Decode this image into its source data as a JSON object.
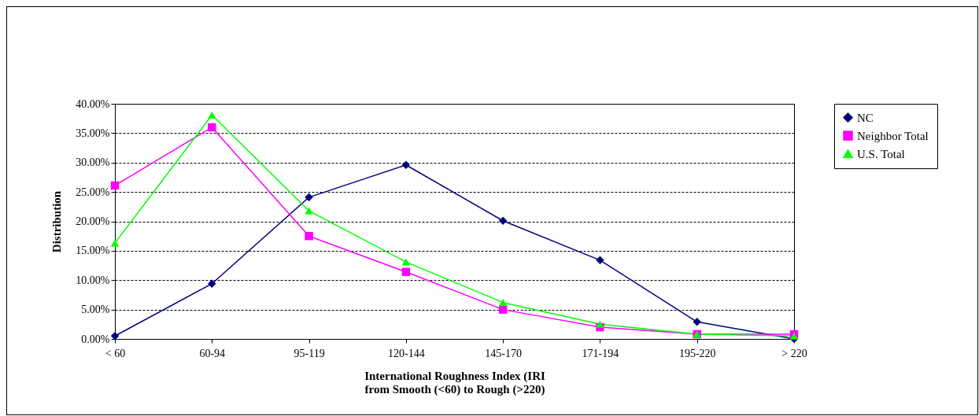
{
  "chart_data": {
    "type": "line",
    "xlabel": "International Roughness Index (IRI\nfrom Smooth (<60) to Rough (>220)",
    "ylabel": "Distribution",
    "categories": [
      "< 60",
      "60-94",
      "95-119",
      "120-144",
      "145-170",
      "171-194",
      "195-220",
      "> 220"
    ],
    "series": [
      {
        "name": "NC",
        "color": "#000080",
        "marker": "diamond",
        "values": [
          0.5,
          9.4,
          24.1,
          29.6,
          20.1,
          13.4,
          2.9,
          0
        ]
      },
      {
        "name": "Neighbor Total",
        "color": "#ff00ff",
        "marker": "square",
        "values": [
          26.1,
          36.0,
          17.5,
          11.4,
          5.0,
          2.0,
          0.8,
          0.8
        ]
      },
      {
        "name": "U.S. Total",
        "color": "#00ff00",
        "marker": "triangle",
        "values": [
          16.3,
          38.1,
          21.8,
          13.1,
          6.2,
          2.5,
          0.8,
          0.5
        ]
      }
    ],
    "ylim": [
      0,
      40
    ],
    "yticks": [
      {
        "value": 0,
        "label": "0.00%"
      },
      {
        "value": 5,
        "label": "5.00%"
      },
      {
        "value": 10,
        "label": "10.00%"
      },
      {
        "value": 15,
        "label": "15.00%"
      },
      {
        "value": 20,
        "label": "20.00%"
      },
      {
        "value": 25,
        "label": "25.00%"
      },
      {
        "value": 30,
        "label": "30.00%"
      },
      {
        "value": 35,
        "label": "35.00%"
      },
      {
        "value": 40,
        "label": "40.00%"
      }
    ],
    "grid": "y",
    "legend": "right",
    "line_style": "solid"
  }
}
